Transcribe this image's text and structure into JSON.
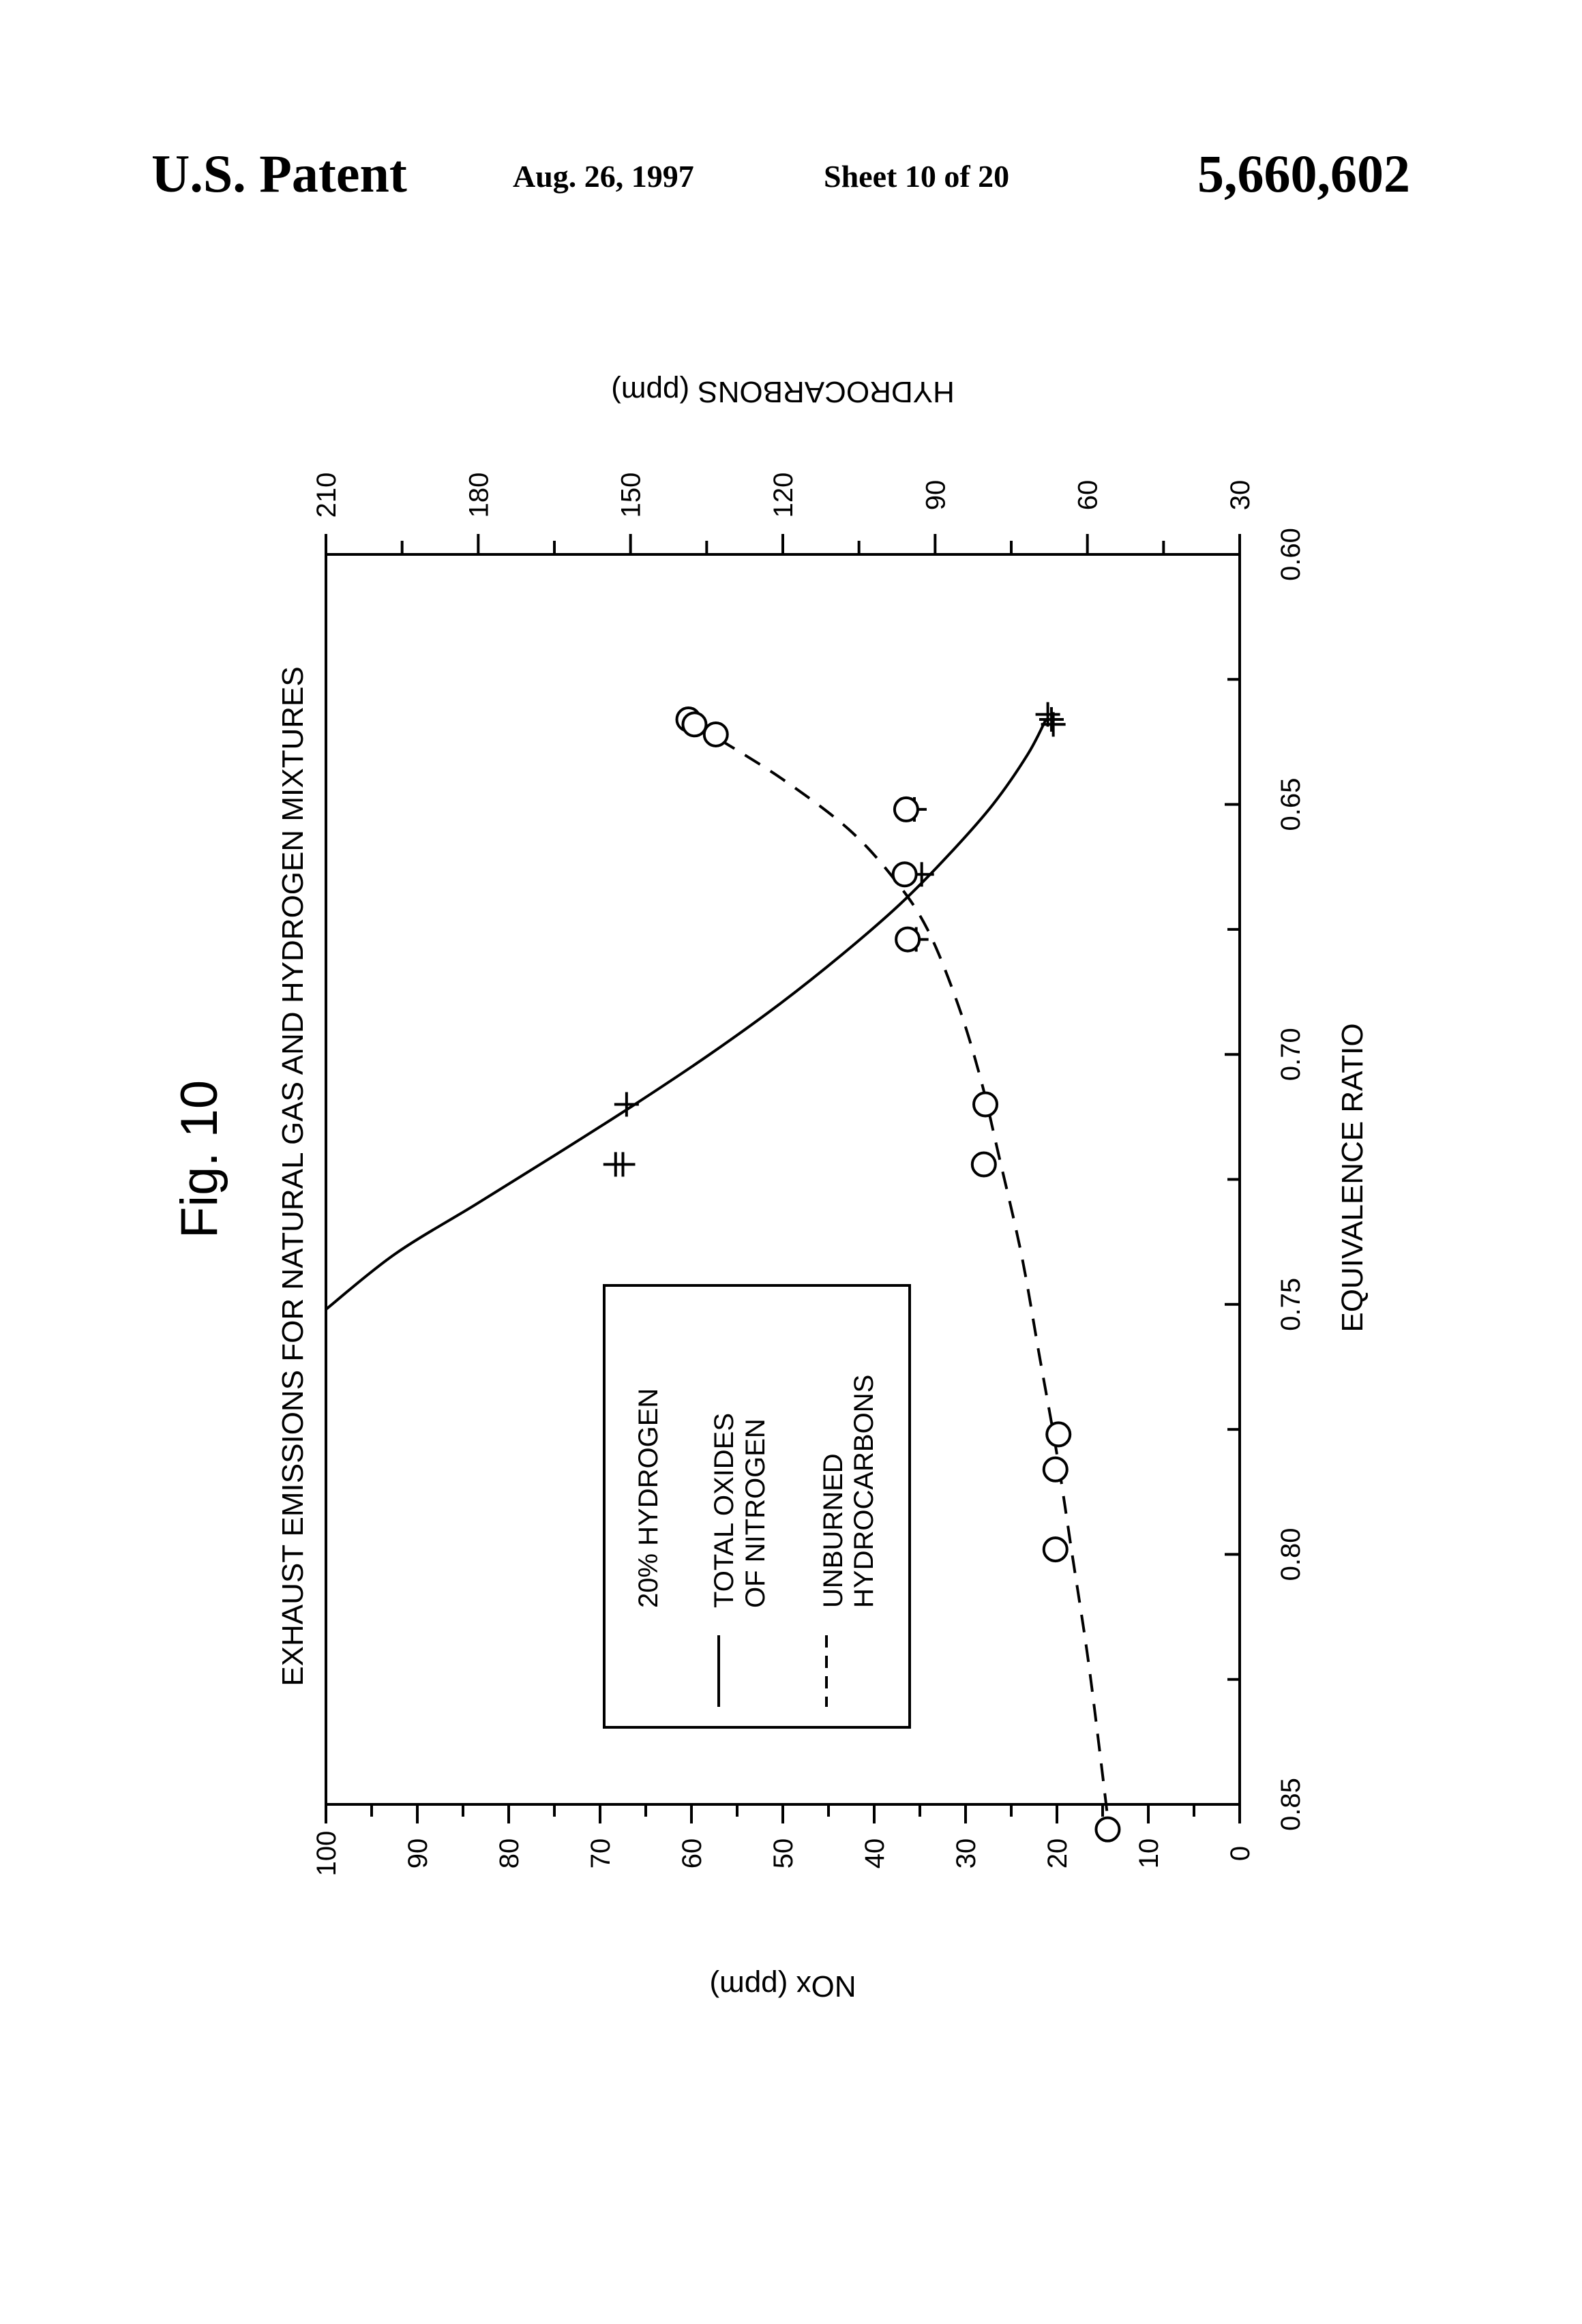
{
  "header": {
    "left": "U.S. Patent",
    "date": "Aug. 26, 1997",
    "sheet": "Sheet 10 of 20",
    "patent_number": "5,660,602"
  },
  "figure": {
    "label": "Fig. 10",
    "legend": {
      "title": "20% HYDROGEN",
      "solid": [
        "TOTAL OXIDES",
        "OF NITROGEN"
      ],
      "dashed": [
        "UNBURNED",
        "HYDROCARBONS"
      ]
    }
  },
  "chart_data": {
    "type": "scatter",
    "title": "EXHAUST EMISSIONS FOR NATURAL GAS AND HYDROGEN MIXTURES",
    "xlabel": "EQUIVALENCE RATIO",
    "ylabel_left": "NOx (ppm)",
    "ylabel_right": "HYDROCARBONS (ppm)",
    "xlim": [
      0.6,
      0.85
    ],
    "xticks": [
      "0.60",
      "0.65",
      "0.70",
      "0.75",
      "0.80",
      "0.85"
    ],
    "ylim_left": [
      0,
      100
    ],
    "yticks_left": [
      "0",
      "10",
      "20",
      "30",
      "40",
      "50",
      "60",
      "70",
      "80",
      "90",
      "100"
    ],
    "ylim_right": [
      30,
      210
    ],
    "yticks_right": [
      "30",
      "60",
      "90",
      "120",
      "150",
      "180",
      "210"
    ],
    "orientation": "rotated 90 degrees counter-clockwise on the page",
    "series": [
      {
        "name": "TOTAL OXIDES OF NITROGEN",
        "axis": "left",
        "marker": "plus",
        "line": "solid",
        "points": [
          {
            "x": 0.632,
            "y": 21.0
          },
          {
            "x": 0.633,
            "y": 20.6
          },
          {
            "x": 0.634,
            "y": 20.4
          },
          {
            "x": 0.651,
            "y": 35.6
          },
          {
            "x": 0.664,
            "y": 34.8
          },
          {
            "x": 0.677,
            "y": 35.4
          },
          {
            "x": 0.71,
            "y": 67.1
          },
          {
            "x": 0.722,
            "y": 67.5
          },
          {
            "x": 0.722,
            "y": 68.3
          }
        ],
        "curve": [
          {
            "x": 0.633,
            "y": 21.2
          },
          {
            "x": 0.64,
            "y": 23.2
          },
          {
            "x": 0.65,
            "y": 27.0
          },
          {
            "x": 0.66,
            "y": 31.8
          },
          {
            "x": 0.67,
            "y": 37.2
          },
          {
            "x": 0.68,
            "y": 43.5
          },
          {
            "x": 0.69,
            "y": 50.4
          },
          {
            "x": 0.7,
            "y": 58.0
          },
          {
            "x": 0.71,
            "y": 66.2
          },
          {
            "x": 0.72,
            "y": 74.8
          },
          {
            "x": 0.73,
            "y": 83.6
          },
          {
            "x": 0.74,
            "y": 92.5
          },
          {
            "x": 0.751,
            "y": 100.0
          }
        ]
      },
      {
        "name": "UNBURNED HYDROCARBONS",
        "axis": "right",
        "marker": "circle",
        "line": "dashed",
        "points": [
          {
            "x": 0.633,
            "y": 138.6
          },
          {
            "x": 0.634,
            "y": 137.4
          },
          {
            "x": 0.636,
            "y": 133.2
          },
          {
            "x": 0.651,
            "y": 95.7
          },
          {
            "x": 0.664,
            "y": 96.0
          },
          {
            "x": 0.677,
            "y": 95.4
          },
          {
            "x": 0.71,
            "y": 80.1
          },
          {
            "x": 0.722,
            "y": 80.4
          },
          {
            "x": 0.776,
            "y": 65.7
          },
          {
            "x": 0.783,
            "y": 66.3
          },
          {
            "x": 0.799,
            "y": 66.3
          },
          {
            "x": 0.855,
            "y": 56.0
          }
        ],
        "curve": [
          {
            "x": 0.637,
            "y": 132.5
          },
          {
            "x": 0.645,
            "y": 120.0
          },
          {
            "x": 0.655,
            "y": 107.0
          },
          {
            "x": 0.665,
            "y": 98.0
          },
          {
            "x": 0.675,
            "y": 91.5
          },
          {
            "x": 0.69,
            "y": 85.5
          },
          {
            "x": 0.705,
            "y": 81.0
          },
          {
            "x": 0.72,
            "y": 77.5
          },
          {
            "x": 0.74,
            "y": 73.0
          },
          {
            "x": 0.76,
            "y": 69.5
          },
          {
            "x": 0.78,
            "y": 66.0
          },
          {
            "x": 0.8,
            "y": 63.0
          },
          {
            "x": 0.82,
            "y": 60.0
          },
          {
            "x": 0.84,
            "y": 57.5
          },
          {
            "x": 0.857,
            "y": 55.5
          }
        ]
      }
    ]
  }
}
